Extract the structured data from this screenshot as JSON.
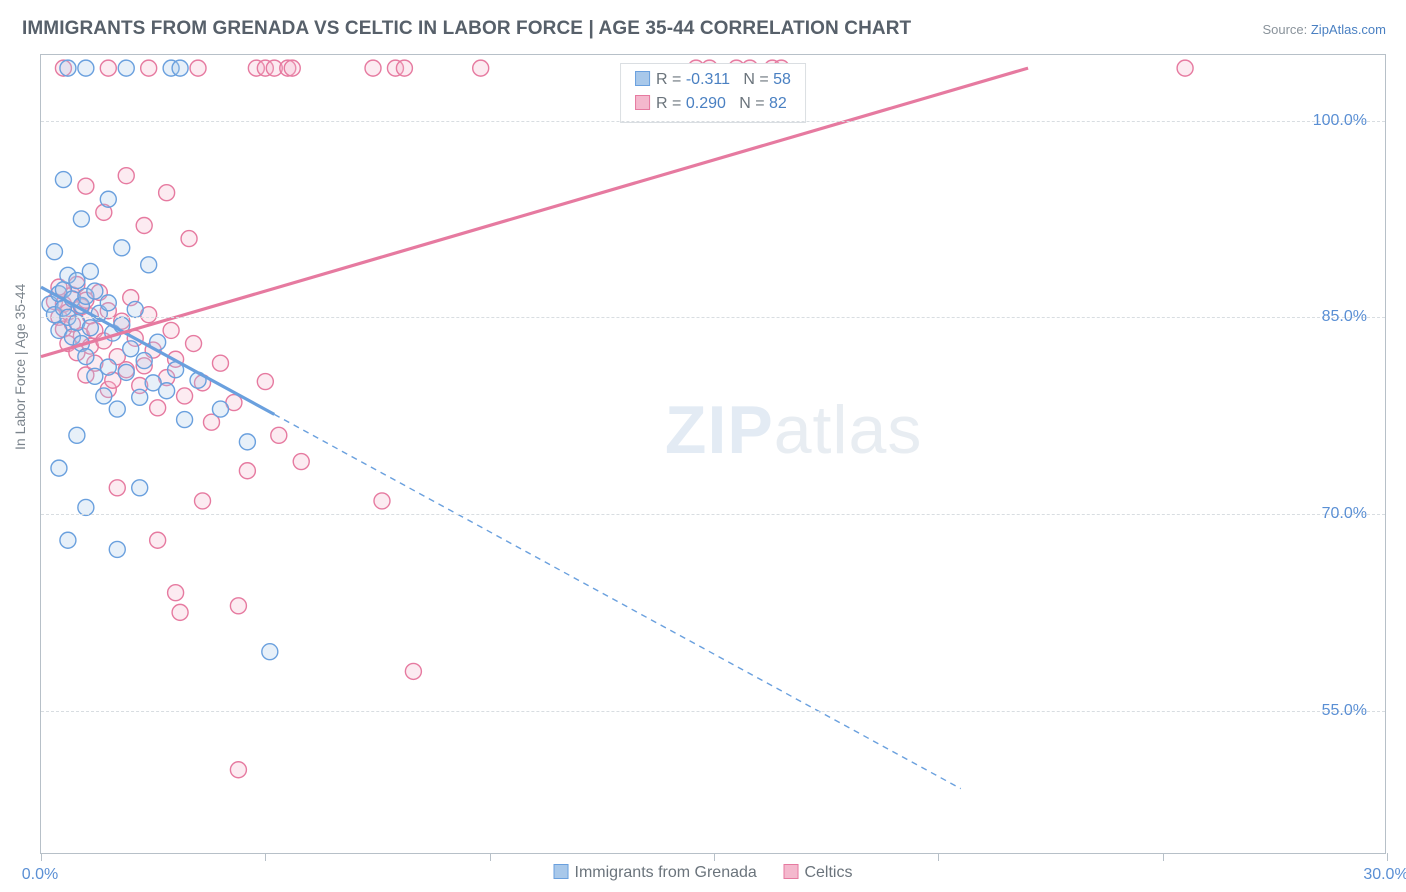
{
  "title": "IMMIGRANTS FROM GRENADA VS CELTIC IN LABOR FORCE | AGE 35-44 CORRELATION CHART",
  "source_prefix": "Source: ",
  "source_link": "ZipAtlas.com",
  "ylabel": "In Labor Force | Age 35-44",
  "watermark_a": "ZIP",
  "watermark_b": "atlas",
  "chart": {
    "type": "scatter",
    "background_color": "#ffffff",
    "border_color": "#b7c0c8",
    "grid_color": "#d8dde1",
    "grid_dash": true,
    "xlim": [
      0.0,
      30.0
    ],
    "ylim": [
      44.0,
      105.0
    ],
    "y_gridlines": [
      55.0,
      70.0,
      85.0,
      100.0
    ],
    "y_tick_labels": [
      "55.0%",
      "70.0%",
      "85.0%",
      "100.0%"
    ],
    "x_ticks": [
      0,
      5,
      10,
      15,
      20,
      25,
      30
    ],
    "x_tick_labels": {
      "0": "0.0%",
      "30": "30.0%"
    },
    "x_axis_label_color": "#5a8fd4",
    "y_axis_label_color": "#5a8fd4",
    "axis_fontsize": 16,
    "title_fontsize": 19,
    "title_color": "#57606a",
    "marker_radius": 8,
    "marker_stroke_width": 1.4,
    "marker_fill_opacity": 0.28,
    "series": [
      {
        "name": "Immigrants from Grenada",
        "color_stroke": "#6aa0de",
        "color_fill": "#a8c8ea",
        "R": -0.311,
        "N": 58,
        "trend": {
          "x1": 0.0,
          "y1": 87.3,
          "x2": 5.2,
          "y2": 77.6,
          "extrapolate_to_x": 20.5,
          "width_solid": 3.2,
          "width_dash": 1.4,
          "dash": "6,5"
        },
        "points": [
          [
            0.2,
            86.0
          ],
          [
            0.3,
            85.2
          ],
          [
            0.4,
            86.8
          ],
          [
            0.4,
            84.0
          ],
          [
            0.5,
            85.7
          ],
          [
            0.5,
            87.1
          ],
          [
            0.6,
            85.0
          ],
          [
            0.6,
            88.2
          ],
          [
            0.7,
            83.5
          ],
          [
            0.7,
            86.4
          ],
          [
            0.8,
            84.6
          ],
          [
            0.8,
            87.8
          ],
          [
            0.9,
            85.9
          ],
          [
            0.9,
            83.0
          ],
          [
            1.0,
            86.6
          ],
          [
            1.0,
            82.0
          ],
          [
            1.1,
            88.5
          ],
          [
            1.1,
            84.2
          ],
          [
            1.2,
            80.5
          ],
          [
            1.2,
            87.0
          ],
          [
            1.3,
            85.3
          ],
          [
            1.4,
            79.0
          ],
          [
            1.5,
            86.1
          ],
          [
            1.5,
            81.2
          ],
          [
            1.6,
            83.8
          ],
          [
            1.7,
            78.0
          ],
          [
            1.8,
            84.4
          ],
          [
            1.9,
            80.8
          ],
          [
            2.0,
            82.6
          ],
          [
            2.1,
            85.6
          ],
          [
            2.2,
            78.9
          ],
          [
            2.3,
            81.7
          ],
          [
            2.5,
            80.0
          ],
          [
            2.6,
            83.1
          ],
          [
            2.8,
            79.4
          ],
          [
            3.0,
            81.0
          ],
          [
            3.2,
            77.2
          ],
          [
            3.5,
            80.2
          ],
          [
            0.5,
            95.5
          ],
          [
            0.9,
            92.5
          ],
          [
            1.5,
            94.0
          ],
          [
            0.3,
            90.0
          ],
          [
            1.8,
            90.3
          ],
          [
            2.4,
            89.0
          ],
          [
            1.0,
            70.5
          ],
          [
            0.6,
            68.0
          ],
          [
            1.7,
            67.3
          ],
          [
            4.0,
            78.0
          ],
          [
            4.6,
            75.5
          ],
          [
            5.1,
            59.5
          ],
          [
            0.6,
            104.0
          ],
          [
            1.0,
            104.0
          ],
          [
            1.9,
            104.0
          ],
          [
            2.9,
            104.0
          ],
          [
            3.1,
            104.0
          ],
          [
            0.4,
            73.5
          ],
          [
            0.8,
            76.0
          ],
          [
            2.2,
            72.0
          ]
        ]
      },
      {
        "name": "Celtics",
        "color_stroke": "#e67aa0",
        "color_fill": "#f4b8cd",
        "R": 0.29,
        "N": 82,
        "trend": {
          "x1": 0.0,
          "y1": 82.0,
          "x2": 22.0,
          "y2": 104.0,
          "extrapolate_to_x": 22.0,
          "width_solid": 3.2,
          "width_dash": 0,
          "dash": ""
        },
        "points": [
          [
            0.3,
            86.2
          ],
          [
            0.4,
            85.0
          ],
          [
            0.4,
            87.3
          ],
          [
            0.5,
            84.1
          ],
          [
            0.5,
            86.0
          ],
          [
            0.6,
            85.4
          ],
          [
            0.6,
            83.0
          ],
          [
            0.7,
            86.7
          ],
          [
            0.7,
            84.5
          ],
          [
            0.8,
            87.5
          ],
          [
            0.8,
            82.3
          ],
          [
            0.9,
            85.8
          ],
          [
            0.9,
            83.6
          ],
          [
            1.0,
            86.3
          ],
          [
            1.0,
            80.6
          ],
          [
            1.1,
            82.8
          ],
          [
            1.1,
            85.1
          ],
          [
            1.2,
            84.0
          ],
          [
            1.2,
            81.5
          ],
          [
            1.3,
            86.9
          ],
          [
            1.4,
            83.2
          ],
          [
            1.5,
            79.5
          ],
          [
            1.5,
            85.5
          ],
          [
            1.6,
            80.2
          ],
          [
            1.7,
            82.0
          ],
          [
            1.8,
            84.7
          ],
          [
            1.9,
            81.0
          ],
          [
            2.0,
            86.5
          ],
          [
            2.1,
            83.4
          ],
          [
            2.2,
            79.8
          ],
          [
            2.3,
            81.3
          ],
          [
            2.4,
            85.2
          ],
          [
            2.5,
            82.5
          ],
          [
            2.6,
            78.1
          ],
          [
            2.8,
            80.4
          ],
          [
            2.9,
            84.0
          ],
          [
            3.0,
            81.8
          ],
          [
            3.2,
            79.0
          ],
          [
            3.4,
            83.0
          ],
          [
            3.6,
            80.0
          ],
          [
            3.8,
            77.0
          ],
          [
            4.0,
            81.5
          ],
          [
            4.3,
            78.5
          ],
          [
            4.6,
            73.3
          ],
          [
            5.0,
            80.1
          ],
          [
            5.3,
            76.0
          ],
          [
            5.8,
            74.0
          ],
          [
            1.0,
            95.0
          ],
          [
            1.4,
            93.0
          ],
          [
            1.9,
            95.8
          ],
          [
            2.3,
            92.0
          ],
          [
            2.8,
            94.5
          ],
          [
            3.3,
            91.0
          ],
          [
            1.7,
            72.0
          ],
          [
            2.6,
            68.0
          ],
          [
            3.0,
            64.0
          ],
          [
            3.1,
            62.5
          ],
          [
            3.6,
            71.0
          ],
          [
            4.4,
            63.0
          ],
          [
            8.3,
            58.0
          ],
          [
            4.4,
            50.5
          ],
          [
            7.6,
            71.0
          ],
          [
            0.5,
            104.0
          ],
          [
            1.5,
            104.0
          ],
          [
            2.4,
            104.0
          ],
          [
            3.5,
            104.0
          ],
          [
            4.8,
            104.0
          ],
          [
            5.0,
            104.0
          ],
          [
            5.2,
            104.0
          ],
          [
            5.5,
            104.0
          ],
          [
            5.6,
            104.0
          ],
          [
            7.4,
            104.0
          ],
          [
            7.9,
            104.0
          ],
          [
            8.1,
            104.0
          ],
          [
            9.8,
            104.0
          ],
          [
            14.6,
            104.0
          ],
          [
            14.9,
            104.0
          ],
          [
            15.5,
            104.0
          ],
          [
            15.8,
            104.0
          ],
          [
            16.3,
            104.0
          ],
          [
            16.5,
            104.0
          ],
          [
            25.5,
            104.0
          ]
        ]
      }
    ],
    "legend_top": {
      "border_color": "#dadee2",
      "text_color": "#6b747c",
      "value_color": "#4a80c2",
      "rows": [
        {
          "swatch_fill": "#a8c8ea",
          "swatch_stroke": "#6aa0de",
          "R_label": "R =",
          "R": "-0.311",
          "N_label": "N =",
          "N": "58"
        },
        {
          "swatch_fill": "#f4b8cd",
          "swatch_stroke": "#e67aa0",
          "R_label": "R =",
          "R": "0.290",
          "N_label": "N =",
          "N": "82"
        }
      ]
    },
    "legend_bottom": [
      {
        "swatch_fill": "#a8c8ea",
        "swatch_stroke": "#6aa0de",
        "label": "Immigrants from Grenada"
      },
      {
        "swatch_fill": "#f4b8cd",
        "swatch_stroke": "#e67aa0",
        "label": "Celtics"
      }
    ]
  }
}
